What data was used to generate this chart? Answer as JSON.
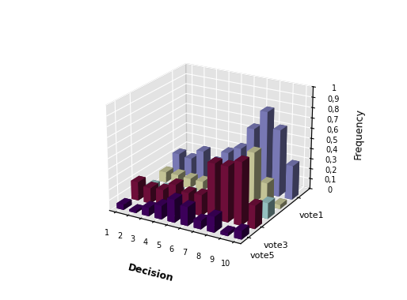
{
  "decisions": [
    1,
    2,
    3,
    4,
    5,
    6,
    7,
    8,
    9,
    10
  ],
  "vote1": [
    0.2,
    0.18,
    0.28,
    0.2,
    0.32,
    0.39,
    0.61,
    0.8,
    0.65,
    0.33
  ],
  "vote3": [
    0.18,
    0.15,
    0.16,
    0.24,
    0.19,
    0.2,
    0.53,
    0.53,
    0.6,
    0.22
  ],
  "vote5": [
    0.05,
    0.02,
    0.08,
    0.13,
    0.22,
    0.18,
    0.08,
    0.15,
    0.03,
    0.08
  ],
  "vote_yellow": [
    0.1,
    0.1,
    0.09,
    0.09,
    0.1,
    0.16,
    0.25,
    0.49,
    0.22,
    0.04
  ],
  "vote_cyan": [
    0.05,
    0.05,
    0.05,
    0.07,
    0.08,
    0.07,
    0.27,
    0.13,
    0.05,
    0.15
  ],
  "colors": {
    "vote1": "#8888CC",
    "vote3": "#7B1040",
    "vote5": "#440066",
    "vote_yellow": "#DDDDAA",
    "vote_cyan": "#A8D8D8"
  },
  "ylabel": "Frequency",
  "xlabel": "Decision",
  "zticks": [
    0,
    0.1,
    0.2,
    0.3,
    0.4,
    0.5,
    0.6,
    0.7,
    0.8,
    0.9,
    1.0
  ],
  "ztick_labels": [
    "0",
    "0,1",
    "0,2",
    "0,3",
    "0,4",
    "0,5",
    "0,6",
    "0,7",
    "0,8",
    "0,9",
    "1"
  ],
  "pane_color": "#C8C8C8",
  "floor_color": "#A0A0A0",
  "elev": 22,
  "azim": -60
}
